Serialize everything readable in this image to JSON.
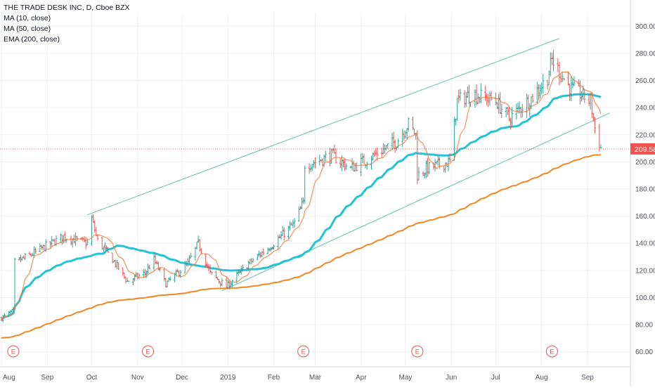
{
  "legend": {
    "symbol": "THE TRADE DESK INC, D, Cboe BZX",
    "ma10": "MA (10, close)",
    "ma50": "MA (50, close)",
    "ema200": "EMA (200, close)"
  },
  "colors": {
    "up": "#26a69a",
    "down": "#ef5350",
    "ma10": "#f57c3b",
    "ma50": "#22c3d4",
    "ema200": "#f4851f",
    "channel": "#6fc7b4",
    "price_line": "#ef5350",
    "grid": "#eef0f4",
    "axis_text": "#50535e",
    "earnings": "#ef5350"
  },
  "chart_data": {
    "type": "candlestick",
    "x_axis_labels": [
      "Aug",
      "Sep",
      "Oct",
      "Nov",
      "Dec",
      "2019",
      "Feb",
      "Mar",
      "Apr",
      "May",
      "Jun",
      "Jul",
      "Aug",
      "Sep"
    ],
    "y_ticks": [
      "300.00",
      "280.00",
      "260.00",
      "240.00",
      "220.00",
      "200.00",
      "180.00",
      "160.00",
      "140.00",
      "120.00",
      "100.00",
      "80.00",
      "60.00"
    ],
    "y_range": [
      50,
      310
    ],
    "last_price": "209.58",
    "last_price_value": 209.58,
    "earnings_marker": "E",
    "earnings_dates": [
      "2018-08-09",
      "2018-11-08",
      "2019-02-21",
      "2019-05-09",
      "2019-08-08"
    ],
    "x_range": [
      "2018-07-31",
      "2019-09-30"
    ],
    "ohlc_anchors": [
      [
        "2018-08-01",
        85
      ],
      [
        "2018-08-09",
        90
      ],
      [
        "2018-08-10",
        126
      ],
      [
        "2018-08-20",
        131
      ],
      [
        "2018-08-31",
        138
      ],
      [
        "2018-09-12",
        145
      ],
      [
        "2018-09-28",
        140
      ],
      [
        "2018-10-01",
        158
      ],
      [
        "2018-10-05",
        142
      ],
      [
        "2018-10-15",
        128
      ],
      [
        "2018-10-25",
        112
      ],
      [
        "2018-11-06",
        118
      ],
      [
        "2018-11-12",
        128
      ],
      [
        "2018-11-20",
        110
      ],
      [
        "2018-12-05",
        125
      ],
      [
        "2018-12-12",
        140
      ],
      [
        "2018-12-20",
        118
      ],
      [
        "2018-12-31",
        108
      ],
      [
        "2019-01-15",
        125
      ],
      [
        "2019-02-01",
        140
      ],
      [
        "2019-02-15",
        155
      ],
      [
        "2019-02-21",
        170
      ],
      [
        "2019-02-22",
        198
      ],
      [
        "2019-03-01",
        200
      ],
      [
        "2019-03-12",
        205
      ],
      [
        "2019-03-25",
        195
      ],
      [
        "2019-04-10",
        205
      ],
      [
        "2019-04-25",
        215
      ],
      [
        "2019-05-03",
        228
      ],
      [
        "2019-05-08",
        220
      ],
      [
        "2019-05-09",
        190
      ],
      [
        "2019-05-15",
        195
      ],
      [
        "2019-05-31",
        200
      ],
      [
        "2019-06-05",
        245
      ],
      [
        "2019-06-15",
        250
      ],
      [
        "2019-07-01",
        245
      ],
      [
        "2019-07-10",
        232
      ],
      [
        "2019-07-26",
        248
      ],
      [
        "2019-08-05",
        262
      ],
      [
        "2019-08-08",
        275
      ],
      [
        "2019-08-20",
        255
      ],
      [
        "2019-09-03",
        245
      ],
      [
        "2019-09-06",
        225
      ],
      [
        "2019-09-10",
        210
      ]
    ],
    "channel_upper": [
      [
        "2018-09-28",
        161
      ],
      [
        "2019-08-13",
        291
      ]
    ],
    "channel_lower": [
      [
        "2018-12-28",
        105
      ],
      [
        "2019-09-16",
        236
      ]
    ],
    "series": [
      {
        "name": "MA (10, close)"
      },
      {
        "name": "MA (50, close)"
      },
      {
        "name": "EMA (200, close)"
      }
    ]
  }
}
